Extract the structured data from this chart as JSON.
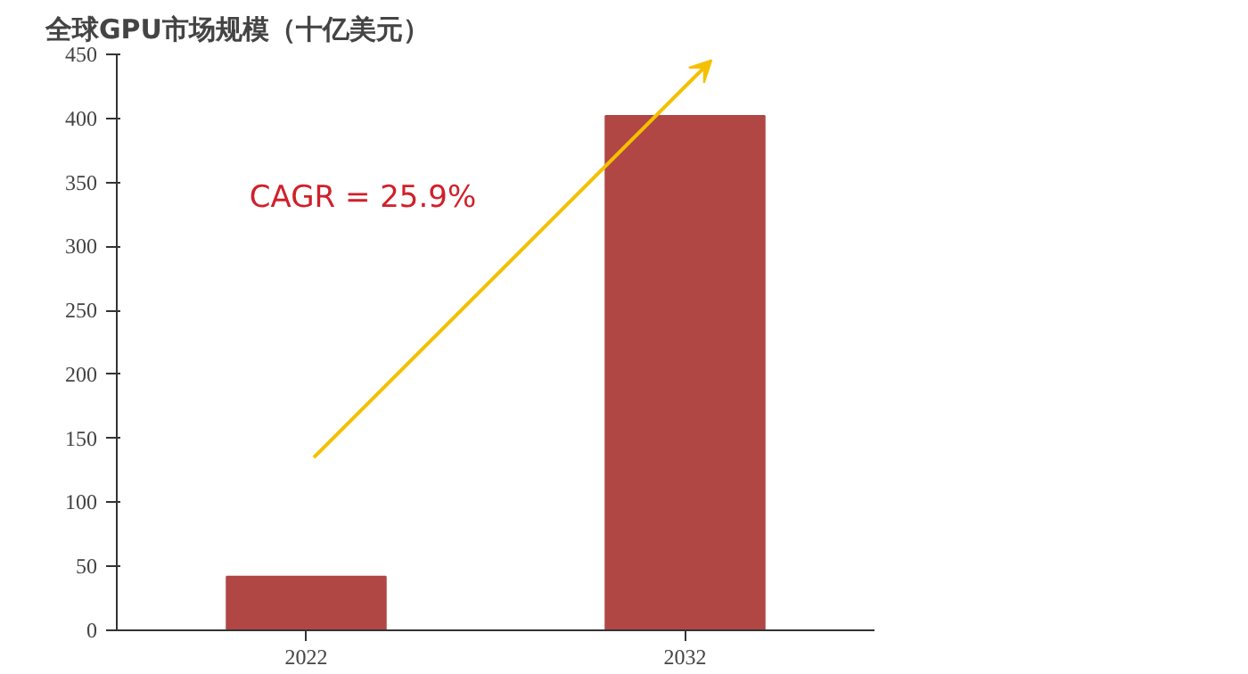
{
  "chart_data": {
    "type": "bar",
    "title": "全球GPU市场规模（十亿美元）",
    "categories": [
      "2022",
      "2032"
    ],
    "values": [
      42,
      402
    ],
    "color": "#b04744",
    "ylim": [
      0,
      450
    ],
    "yticks": [
      0,
      50,
      100,
      150,
      200,
      250,
      300,
      350,
      400,
      450
    ],
    "grid": false,
    "annotations": [
      "CAGR = 25.9%"
    ]
  }
}
